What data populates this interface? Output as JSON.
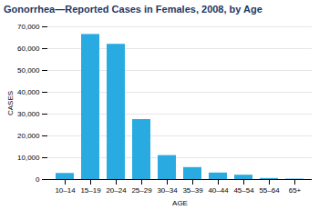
{
  "chart_data": {
    "type": "bar",
    "title": "Gonorrhea—Reported Cases in Females, 2008, by Age",
    "xlabel": "AGE",
    "ylabel": "CASES",
    "categories": [
      "10–14",
      "15–19",
      "20–24",
      "25–29",
      "30–34",
      "35–39",
      "40–44",
      "45–54",
      "55–64",
      "65+"
    ],
    "values": [
      2800,
      66500,
      62000,
      27500,
      11000,
      5500,
      3000,
      2000,
      500,
      200
    ],
    "color": "#29ABE2",
    "ylim": [
      0,
      70000
    ],
    "yticks": [
      0,
      {
        "value": 10000,
        "label": "10,000"
      },
      {
        "value": 20000,
        "label": "20,000"
      },
      {
        "value": 30000,
        "label": "30,000"
      },
      {
        "value": 40000,
        "label": "40,000"
      },
      {
        "value": 50000,
        "label": "50,000"
      },
      {
        "value": 60000,
        "label": "60,000"
      },
      {
        "value": 70000,
        "label": "70,000"
      }
    ],
    "grid": true
  }
}
